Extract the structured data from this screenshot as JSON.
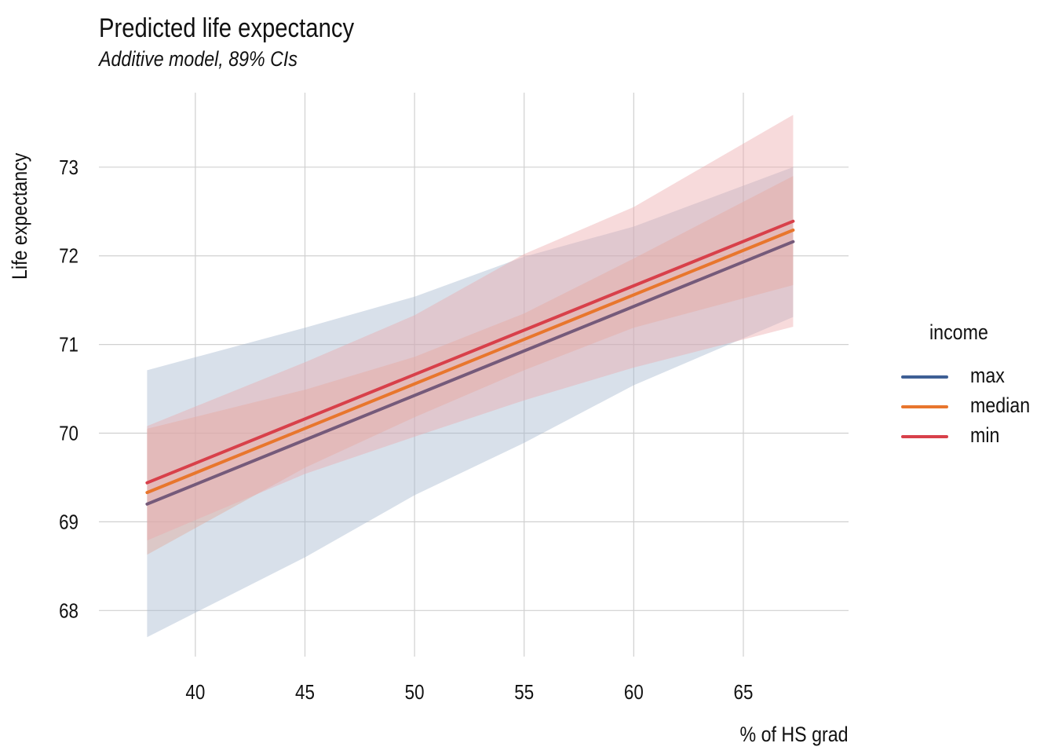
{
  "chart_data": {
    "type": "line",
    "title": "Predicted life expectancy",
    "subtitle": "Additive model, 89% CIs",
    "xlabel": "% of HS grad",
    "ylabel": "Life expectancy",
    "xlim": [
      35.6,
      69.8
    ],
    "ylim": [
      67.48,
      73.84
    ],
    "xticks": [
      40,
      45,
      50,
      55,
      60,
      65
    ],
    "yticks": [
      68,
      69,
      70,
      71,
      72,
      73
    ],
    "grid": true,
    "legend": {
      "title": "income",
      "position": "right"
    },
    "series": [
      {
        "name": "max",
        "color": "#3e5f95",
        "line_color": "#755a7a",
        "fill_color": "#a3b5cd",
        "x": [
          37.8,
          67.27
        ],
        "y": [
          69.2,
          72.16
        ],
        "ribbon": {
          "x": [
            37.8,
            45,
            50,
            55,
            60,
            67.27
          ],
          "lower": [
            67.7,
            68.6,
            69.3,
            69.89,
            70.54,
            71.31
          ],
          "upper": [
            70.71,
            71.19,
            71.54,
            71.99,
            72.33,
            73.0
          ]
        }
      },
      {
        "name": "median",
        "color": "#e8762d",
        "line_color": "#e8762d",
        "fill_color": "#e3a795",
        "x": [
          37.8,
          67.27
        ],
        "y": [
          69.33,
          72.29
        ],
        "ribbon": {
          "x": [
            37.8,
            45,
            50,
            55,
            60,
            67.27
          ],
          "lower": [
            68.63,
            69.61,
            70.18,
            70.71,
            71.19,
            71.67
          ],
          "upper": [
            70.05,
            70.49,
            70.86,
            71.35,
            71.97,
            72.9
          ]
        }
      },
      {
        "name": "min",
        "color": "#d8404a",
        "line_color": "#d8404a",
        "fill_color": "#eba6aa",
        "x": [
          37.8,
          67.27
        ],
        "y": [
          69.44,
          72.39
        ],
        "ribbon": {
          "x": [
            37.8,
            45,
            50,
            55,
            60,
            67.27
          ],
          "lower": [
            68.79,
            69.54,
            69.96,
            70.37,
            70.74,
            71.2
          ],
          "upper": [
            70.08,
            70.8,
            71.33,
            72.02,
            72.55,
            73.59
          ]
        }
      }
    ]
  }
}
